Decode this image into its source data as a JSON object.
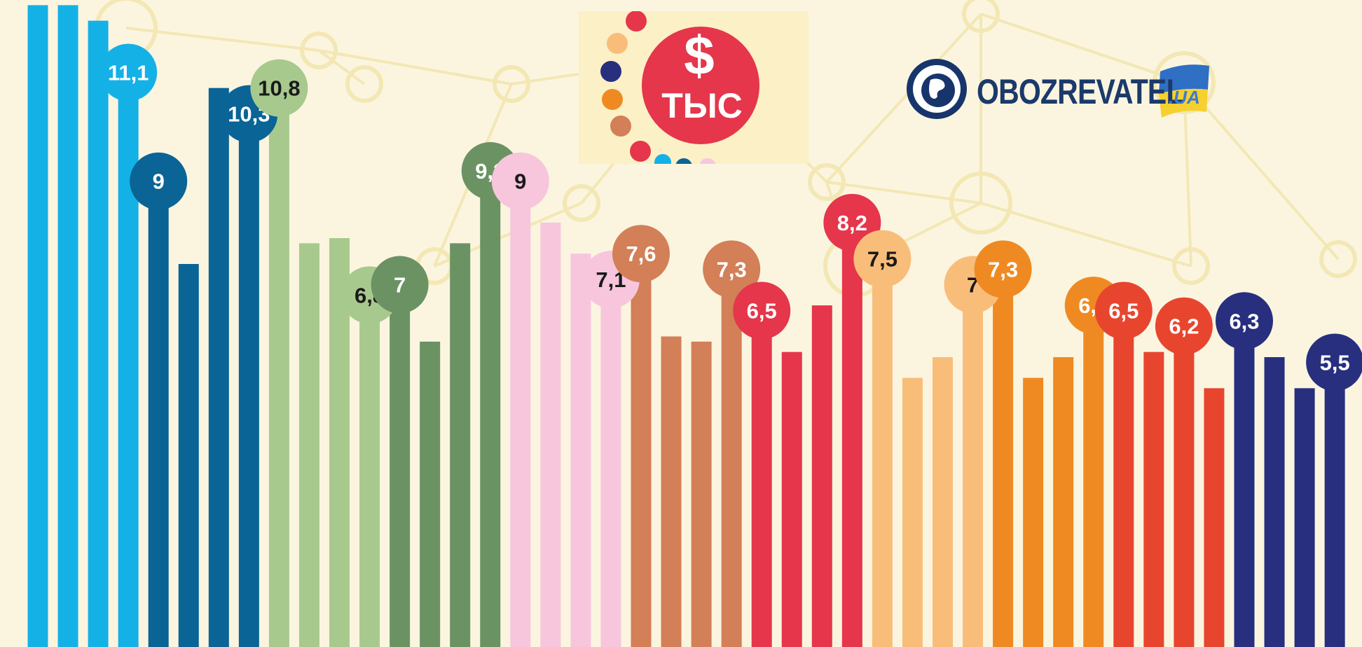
{
  "brand": {
    "logo_text": "OBOZREVATEL",
    "logo_suffix": ".UA",
    "globe_icon": "globe-icon"
  },
  "unit_badge": {
    "symbol": "$",
    "label": "ТЫС"
  },
  "colors": {
    "background": "#fbf5e0",
    "network_lines": "#f3e7b4"
  },
  "chart_data": {
    "type": "bar",
    "title": "",
    "xlabel": "",
    "ylabel": "",
    "ylim": [
      0,
      12.5
    ],
    "unit": "тыс $",
    "legend": "none",
    "grid": false,
    "bars": [
      {
        "value": 12.4,
        "color": "#14b1e7"
      },
      {
        "value": 12.4,
        "color": "#14b1e7"
      },
      {
        "value": 12.1,
        "color": "#14b1e7"
      },
      {
        "value": 11.1,
        "color": "#14b1e7",
        "label": "11,1"
      },
      {
        "value": 9.0,
        "color": "#0a6496",
        "label": "9"
      },
      {
        "value": 7.4,
        "color": "#0a6496"
      },
      {
        "value": 10.8,
        "color": "#0a6496"
      },
      {
        "value": 10.3,
        "color": "#0a6496",
        "label": "10,3"
      },
      {
        "value": 10.8,
        "color": "#a8c98e",
        "label": "10,8"
      },
      {
        "value": 7.8,
        "color": "#a8c98e"
      },
      {
        "value": 7.9,
        "color": "#a8c98e"
      },
      {
        "value": 6.8,
        "color": "#a8c98e",
        "label": "6,8"
      },
      {
        "value": 7.0,
        "color": "#6b9263",
        "label": "7"
      },
      {
        "value": 5.9,
        "color": "#6b9263"
      },
      {
        "value": 7.8,
        "color": "#6b9263"
      },
      {
        "value": 9.2,
        "color": "#6b9263",
        "label": "9,2"
      },
      {
        "value": 9.0,
        "color": "#f7c6dc",
        "label": "9"
      },
      {
        "value": 8.2,
        "color": "#f7c6dc"
      },
      {
        "value": 7.6,
        "color": "#f7c6dc"
      },
      {
        "value": 7.1,
        "color": "#f7c6dc",
        "label": "7,1"
      },
      {
        "value": 7.6,
        "color": "#d37f57",
        "label": "7,6"
      },
      {
        "value": 6.0,
        "color": "#d37f57"
      },
      {
        "value": 5.9,
        "color": "#d37f57"
      },
      {
        "value": 7.3,
        "color": "#d37f57",
        "label": "7,3"
      },
      {
        "value": 6.5,
        "color": "#e5364b",
        "label": "6,5"
      },
      {
        "value": 5.7,
        "color": "#e5364b"
      },
      {
        "value": 6.6,
        "color": "#e5364b"
      },
      {
        "value": 8.2,
        "color": "#e5364b",
        "label": "8,2"
      },
      {
        "value": 7.5,
        "color": "#f9bd7a",
        "label": "7,5"
      },
      {
        "value": 5.2,
        "color": "#f9bd7a"
      },
      {
        "value": 5.6,
        "color": "#f9bd7a"
      },
      {
        "value": 7.0,
        "color": "#f9bd7a",
        "label": "7"
      },
      {
        "value": 7.3,
        "color": "#ef8a22",
        "label": "7,3"
      },
      {
        "value": 5.2,
        "color": "#ef8a22"
      },
      {
        "value": 5.6,
        "color": "#ef8a22"
      },
      {
        "value": 6.6,
        "color": "#ef8a22",
        "label": "6,6"
      },
      {
        "value": 6.5,
        "color": "#e8452f",
        "label": "6,5"
      },
      {
        "value": 5.7,
        "color": "#e8452f"
      },
      {
        "value": 6.2,
        "color": "#e8452f",
        "label": "6,2"
      },
      {
        "value": 5.0,
        "color": "#e8452f"
      },
      {
        "value": 6.3,
        "color": "#272f7e",
        "label": "6,3"
      },
      {
        "value": 5.6,
        "color": "#272f7e"
      },
      {
        "value": 5.0,
        "color": "#272f7e"
      },
      {
        "value": 5.5,
        "color": "#272f7e",
        "label": "5,5"
      }
    ]
  }
}
